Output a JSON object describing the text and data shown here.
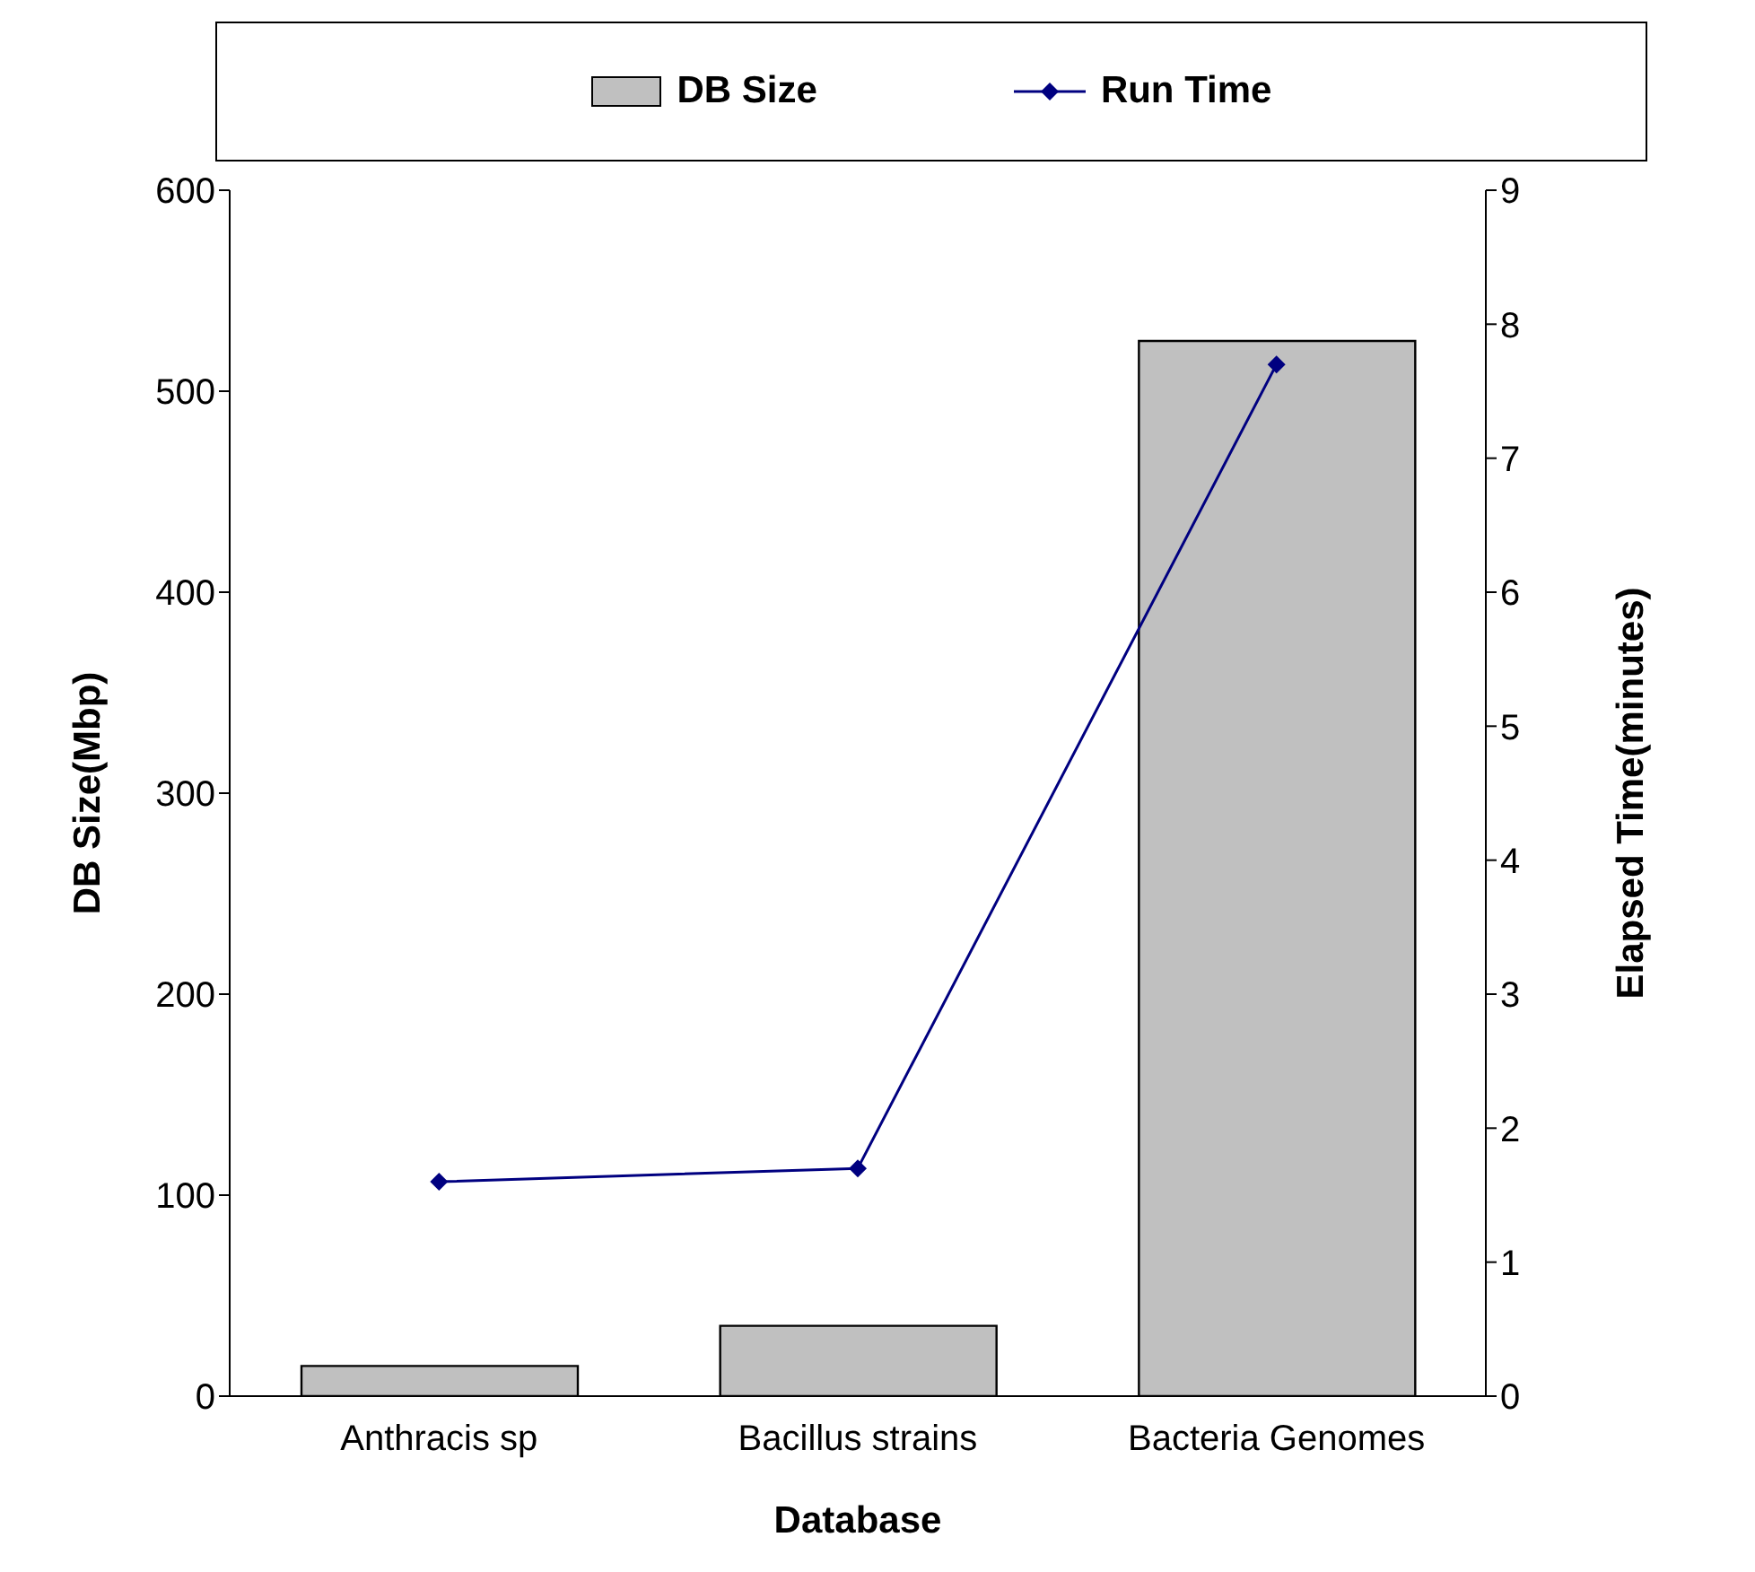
{
  "chart_data": {
    "type": "bar",
    "categories": [
      "Anthracis sp",
      "Bacillus strains",
      "Bacteria Genomes"
    ],
    "series": [
      {
        "name": "DB Size",
        "color": "#c0c0c0",
        "values": [
          15,
          35,
          525
        ]
      },
      {
        "name": "Run Time",
        "type": "line",
        "axis": "y2",
        "color": "#000080",
        "values": [
          1.6,
          1.7,
          7.7
        ]
      }
    ],
    "xlabel": "Database",
    "ylabel": "DB Size(Mbp)",
    "y2label": "Elapsed Time(minutes)",
    "ylim": [
      0,
      600
    ],
    "yticks": [
      0,
      100,
      200,
      300,
      400,
      500,
      600
    ],
    "y2lim": [
      0,
      9
    ],
    "y2ticks": [
      0,
      1,
      2,
      3,
      4,
      5,
      6,
      7,
      8,
      9
    ],
    "legend": "top",
    "marker": "diamond",
    "line_style": "solid"
  }
}
